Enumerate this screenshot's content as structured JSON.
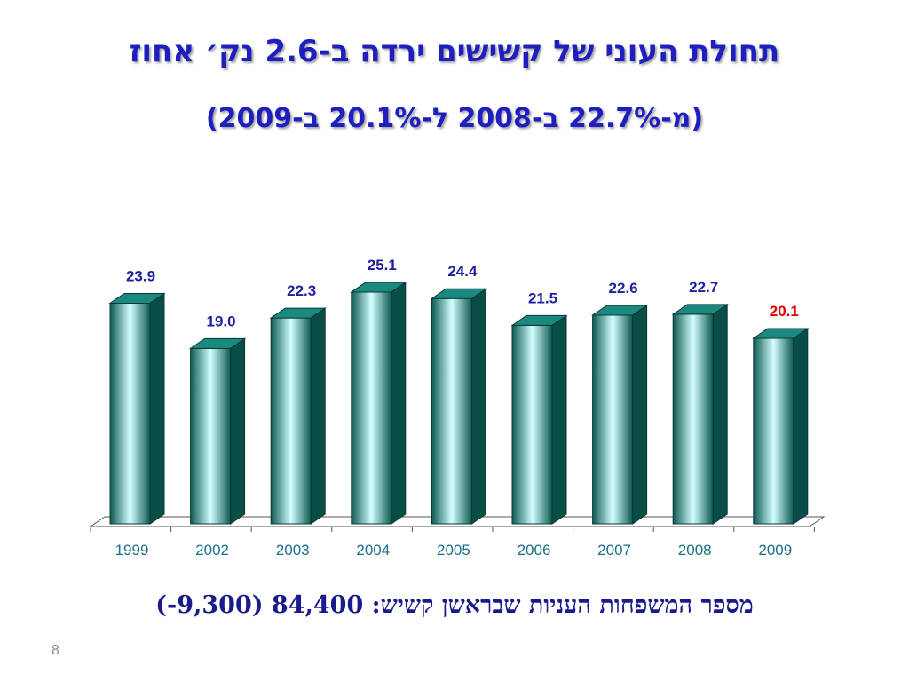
{
  "slide": {
    "title": "תחולת העוני של קשישים ירדה ב-2.6 נק׳ אחוז",
    "subtitle": "(מ-22.7% ב-2008 ל-20.1% ב-2009)",
    "footnote": "מספר המשפחות העניות שבראשן קשיש: 84,400 (9,300-)",
    "page_number": "8"
  },
  "colors": {
    "title": "#1f1fbf",
    "bar_dark": "#0d5a52",
    "bar_light": "#d4ffff",
    "bar_top": "#1a8a80",
    "bar_side": "#0a4d46",
    "value_label": "#1f1f9f",
    "highlight_label": "#e00000",
    "tick_label": "#1a6f8a"
  },
  "chart_data": {
    "type": "bar",
    "title": "",
    "xlabel": "",
    "ylabel": "",
    "categories": [
      "1999",
      "2002",
      "2003",
      "2004",
      "2005",
      "2006",
      "2007",
      "2008",
      "2009"
    ],
    "values": [
      23.9,
      19.0,
      22.3,
      25.1,
      24.4,
      21.5,
      22.6,
      22.7,
      20.1
    ],
    "value_labels": [
      "23.9",
      "19.0",
      "22.3",
      "25.1",
      "24.4",
      "21.5",
      "22.6",
      "22.7",
      "20.1"
    ],
    "highlight_index": 8,
    "ylim": [
      0,
      25.1
    ],
    "grid": false,
    "legend": "none",
    "style": "3d-cylinder-bars"
  }
}
